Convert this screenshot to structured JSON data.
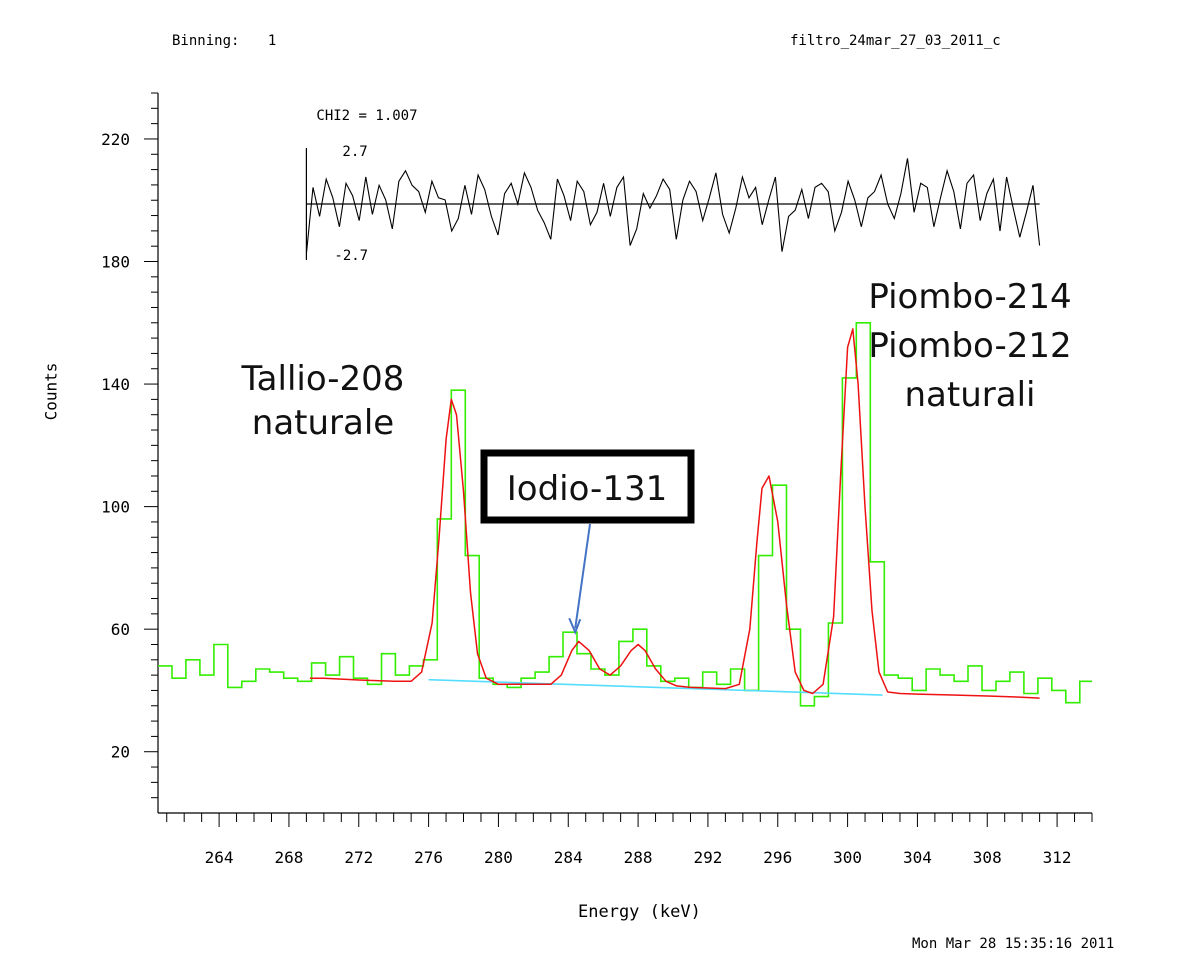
{
  "header": {
    "binning_label": "Binning:",
    "binning_value": "1",
    "filename": "filtro_24mar_27_03_2011_c"
  },
  "footer": {
    "timestamp": "Mon Mar 28 15:35:16 2011"
  },
  "colors": {
    "data": "#33ee00",
    "fit": "#ee1111",
    "background": "#55ddff",
    "residual": "#000000",
    "annotation_arrow": "#4472c4"
  },
  "chart_data": {
    "type": "line",
    "xlabel": "Energy (keV)",
    "ylabel": "Counts",
    "xlim": [
      260.5,
      314
    ],
    "ylim": [
      0,
      235
    ],
    "xticks": [
      264,
      268,
      272,
      276,
      280,
      284,
      288,
      292,
      296,
      300,
      304,
      308,
      312
    ],
    "xtick_labels": [
      "264",
      "268",
      "272",
      "276",
      "280",
      "284",
      "288",
      "292",
      "296",
      "300",
      "304",
      "308",
      "312"
    ],
    "yticks": [
      20,
      60,
      100,
      140,
      180,
      220
    ],
    "ytick_labels": [
      "20",
      "60",
      "100",
      "140",
      "180",
      "220"
    ],
    "grid": false,
    "series": [
      {
        "kind": "measured spectrum (histogram)",
        "x": [
          260.5,
          261.3,
          262.1,
          262.9,
          263.7,
          264.5,
          265.3,
          266.1,
          266.9,
          267.7,
          268.5,
          269.3,
          270.1,
          270.9,
          271.7,
          272.5,
          273.3,
          274.1,
          274.9,
          275.7,
          276.5,
          277.3,
          278.1,
          278.9,
          279.7,
          280.5,
          281.3,
          282.1,
          282.9,
          283.7,
          284.5,
          285.3,
          286.1,
          286.9,
          287.7,
          288.5,
          289.3,
          290.1,
          290.9,
          291.7,
          292.5,
          293.3,
          294.1,
          294.9,
          295.7,
          296.5,
          297.3,
          298.1,
          298.9,
          299.7,
          300.5,
          301.3,
          302.1,
          302.9,
          303.7,
          304.5,
          305.3,
          306.1,
          306.9,
          307.7,
          308.5,
          309.3,
          310.1,
          310.9,
          311.7,
          312.5,
          313.3
        ],
        "y": [
          48,
          44,
          50,
          45,
          55,
          41,
          43,
          47,
          46,
          44,
          43,
          49,
          45,
          51,
          44,
          42,
          52,
          45,
          48,
          50,
          96,
          138,
          84,
          44,
          42,
          41,
          44,
          46,
          51,
          59,
          52,
          47,
          45,
          56,
          60,
          48,
          43,
          44,
          41,
          46,
          42,
          47,
          40,
          84,
          107,
          60,
          35,
          38,
          62,
          142,
          160,
          82,
          45,
          44,
          40,
          47,
          45,
          43,
          48,
          40,
          43,
          46,
          39,
          44,
          40,
          36,
          43
        ]
      },
      {
        "kind": "fit",
        "x": [
          269.2,
          270,
          271,
          272,
          273,
          274,
          275,
          275.6,
          276.2,
          276.6,
          277,
          277.3,
          277.6,
          278,
          278.4,
          278.8,
          279.3,
          280,
          281,
          282,
          283,
          283.6,
          284.2,
          284.6,
          285.2,
          285.8,
          286.4,
          287,
          287.6,
          288,
          288.4,
          289,
          289.6,
          290.2,
          291,
          292,
          293,
          293.8,
          294.4,
          294.8,
          295.1,
          295.5,
          296,
          296.5,
          297,
          297.5,
          298,
          298.6,
          299.2,
          299.6,
          300,
          300.3,
          300.6,
          301,
          301.4,
          301.8,
          302.3,
          303,
          304,
          306,
          308,
          310,
          311
        ],
        "y": [
          44,
          44,
          43.7,
          43.4,
          43.2,
          43,
          43,
          46,
          62,
          90,
          122,
          135,
          130,
          105,
          72,
          52,
          44,
          42,
          42,
          42,
          42,
          45,
          53,
          56,
          53,
          47,
          45,
          48,
          53,
          55,
          53,
          47,
          43,
          41.5,
          41,
          40.8,
          40.6,
          42,
          60,
          88,
          106,
          110,
          95,
          68,
          46,
          40,
          39,
          42,
          64,
          110,
          152,
          158,
          140,
          100,
          66,
          46,
          39.5,
          39,
          38.8,
          38.5,
          38.2,
          37.8,
          37.5
        ]
      },
      {
        "kind": "background baseline",
        "x": [
          276,
          302
        ],
        "y": [
          43.5,
          38.5
        ]
      }
    ],
    "residual_panel": {
      "label": "CHI2 =",
      "value": "1.007",
      "upper_label": "2.7",
      "lower_label": "-2.7",
      "x_range": [
        269,
        311
      ],
      "y_range": [
        -2.7,
        2.7
      ],
      "values": [
        -2.4,
        0.8,
        -0.6,
        1.2,
        0.3,
        -1.1,
        1.0,
        0.4,
        -0.8,
        1.3,
        -0.5,
        0.9,
        0.2,
        -1.2,
        1.1,
        1.6,
        0.9,
        0.6,
        -0.4,
        1.1,
        0.3,
        0.2,
        -1.3,
        -0.7,
        0.9,
        -0.5,
        1.4,
        0.7,
        -0.6,
        -1.5,
        0.5,
        1.0,
        0.0,
        1.5,
        0.8,
        -0.3,
        -0.9,
        -1.7,
        1.2,
        0.4,
        -0.8,
        1.1,
        0.6,
        -1.0,
        -0.4,
        1.0,
        -0.6,
        0.8,
        1.3,
        -2.0,
        -1.2,
        0.5,
        -0.2,
        0.4,
        1.2,
        0.7,
        -1.7,
        0.2,
        1.1,
        0.6,
        -0.8,
        0.3,
        1.5,
        -0.5,
        -1.4,
        -0.2,
        1.3,
        0.3,
        0.8,
        -1.0,
        0.2,
        1.3,
        -2.3,
        -0.6,
        -0.3,
        0.7,
        -0.7,
        0.8,
        1.0,
        0.6,
        -1.3,
        -0.4,
        1.1,
        0.2,
        -1.1,
        0.3,
        0.6,
        1.4,
        0.0,
        -0.7,
        0.5,
        2.2,
        -0.4,
        1.0,
        0.8,
        -1.1,
        0.3,
        1.6,
        0.6,
        -1.2,
        1.0,
        1.4,
        -0.8,
        0.5,
        1.2,
        -1.3,
        1.3,
        -0.2,
        -1.6,
        -0.4,
        0.9,
        -2.0
      ]
    },
    "annotations": [
      {
        "text_lines": [
          "Tallio-208",
          "naturale"
        ],
        "x": 277.3,
        "y": 140
      },
      {
        "text_lines": [
          "Iodio-131"
        ],
        "boxed": true,
        "arrow_to": {
          "x": 284.4,
          "y": 59
        }
      },
      {
        "text_lines": [
          "Piombo-214",
          "Piombo-212",
          "naturali"
        ],
        "x": 300.2,
        "y": 160
      }
    ]
  }
}
